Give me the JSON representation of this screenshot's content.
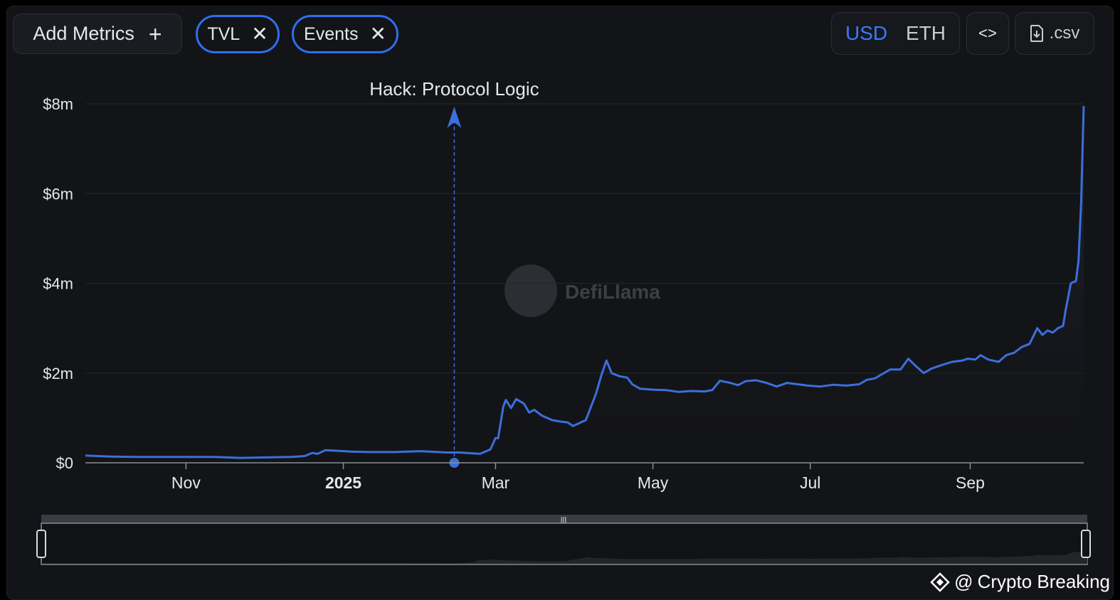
{
  "toolbar": {
    "add_metrics_label": "Add Metrics",
    "add_icon": "plus-icon",
    "tags": [
      {
        "label": "TVL",
        "icon": "close-icon"
      },
      {
        "label": "Events",
        "icon": "close-icon"
      }
    ],
    "currency_options": [
      "USD",
      "ETH"
    ],
    "currency_selected": "USD",
    "embed_label": "<>",
    "csv_label": ".csv",
    "accent_color": "#2e6ef0"
  },
  "watermark": {
    "text": "DefiLlama"
  },
  "credit": {
    "at": "@",
    "text": "Crypto Breaking"
  },
  "chart_data": {
    "type": "area",
    "series": [
      {
        "name": "TVL",
        "color": "#3b6fdc",
        "points": [
          [
            0,
            0.16
          ],
          [
            10,
            0.14
          ],
          [
            20,
            0.13
          ],
          [
            30,
            0.13
          ],
          [
            40,
            0.13
          ],
          [
            50,
            0.13
          ],
          [
            60,
            0.11
          ],
          [
            70,
            0.12
          ],
          [
            80,
            0.13
          ],
          [
            85,
            0.15
          ],
          [
            88,
            0.22
          ],
          [
            90,
            0.2
          ],
          [
            93,
            0.28
          ],
          [
            97,
            0.27
          ],
          [
            103,
            0.25
          ],
          [
            110,
            0.24
          ],
          [
            120,
            0.24
          ],
          [
            130,
            0.26
          ],
          [
            140,
            0.23
          ],
          [
            145,
            0.23
          ],
          [
            153,
            0.2
          ],
          [
            157,
            0.3
          ],
          [
            159,
            0.55
          ],
          [
            160,
            0.55
          ],
          [
            162,
            1.25
          ],
          [
            163,
            1.4
          ],
          [
            165,
            1.22
          ],
          [
            167,
            1.42
          ],
          [
            170,
            1.32
          ],
          [
            172,
            1.12
          ],
          [
            174,
            1.18
          ],
          [
            177,
            1.05
          ],
          [
            181,
            0.95
          ],
          [
            184,
            0.92
          ],
          [
            187,
            0.9
          ],
          [
            189,
            0.82
          ],
          [
            192,
            0.9
          ],
          [
            194,
            0.95
          ],
          [
            196,
            1.25
          ],
          [
            198,
            1.55
          ],
          [
            200,
            1.95
          ],
          [
            202,
            2.28
          ],
          [
            204,
            2.0
          ],
          [
            207,
            1.93
          ],
          [
            210,
            1.9
          ],
          [
            212,
            1.75
          ],
          [
            215,
            1.65
          ],
          [
            220,
            1.63
          ],
          [
            225,
            1.62
          ],
          [
            230,
            1.58
          ],
          [
            235,
            1.6
          ],
          [
            240,
            1.59
          ],
          [
            243,
            1.62
          ],
          [
            246,
            1.83
          ],
          [
            250,
            1.78
          ],
          [
            253,
            1.73
          ],
          [
            256,
            1.82
          ],
          [
            260,
            1.84
          ],
          [
            264,
            1.78
          ],
          [
            268,
            1.7
          ],
          [
            272,
            1.78
          ],
          [
            276,
            1.75
          ],
          [
            280,
            1.72
          ],
          [
            285,
            1.7
          ],
          [
            290,
            1.74
          ],
          [
            295,
            1.72
          ],
          [
            300,
            1.75
          ],
          [
            303,
            1.85
          ],
          [
            306,
            1.88
          ],
          [
            309,
            1.98
          ],
          [
            312,
            2.08
          ],
          [
            316,
            2.08
          ],
          [
            319,
            2.32
          ],
          [
            322,
            2.15
          ],
          [
            325,
            2.0
          ],
          [
            328,
            2.1
          ],
          [
            332,
            2.18
          ],
          [
            336,
            2.25
          ],
          [
            340,
            2.28
          ],
          [
            342,
            2.32
          ],
          [
            345,
            2.3
          ],
          [
            347,
            2.4
          ],
          [
            350,
            2.3
          ],
          [
            354,
            2.25
          ],
          [
            357,
            2.4
          ],
          [
            360,
            2.45
          ],
          [
            363,
            2.58
          ],
          [
            366,
            2.65
          ],
          [
            369,
            3.0
          ],
          [
            371,
            2.85
          ],
          [
            373,
            2.95
          ],
          [
            375,
            2.9
          ],
          [
            377,
            3.0
          ],
          [
            379,
            3.05
          ],
          [
            380,
            3.4
          ],
          [
            382,
            4.0
          ],
          [
            384,
            4.05
          ],
          [
            385,
            4.5
          ],
          [
            386,
            5.8
          ],
          [
            387,
            7.95
          ]
        ]
      }
    ],
    "x_axis": {
      "ticks": [
        {
          "day": 39,
          "label": "Nov",
          "bold": false
        },
        {
          "day": 100,
          "label": "2025",
          "bold": true
        },
        {
          "day": 159,
          "label": "Mar",
          "bold": false
        },
        {
          "day": 220,
          "label": "May",
          "bold": false
        },
        {
          "day": 281,
          "label": "Jul",
          "bold": false
        },
        {
          "day": 343,
          "label": "Sep",
          "bold": false
        }
      ],
      "domain": [
        0,
        387
      ]
    },
    "y_axis": {
      "ticks": [
        {
          "value": 0,
          "label": "$0"
        },
        {
          "value": 2,
          "label": "$2m"
        },
        {
          "value": 4,
          "label": "$4m"
        },
        {
          "value": 6,
          "label": "$6m"
        },
        {
          "value": 8,
          "label": "$8m"
        }
      ],
      "ylim": [
        0,
        8
      ]
    },
    "events": [
      {
        "day": 143,
        "label": "Hack: Protocol Logic"
      }
    ],
    "grid": true,
    "legend": "none"
  }
}
